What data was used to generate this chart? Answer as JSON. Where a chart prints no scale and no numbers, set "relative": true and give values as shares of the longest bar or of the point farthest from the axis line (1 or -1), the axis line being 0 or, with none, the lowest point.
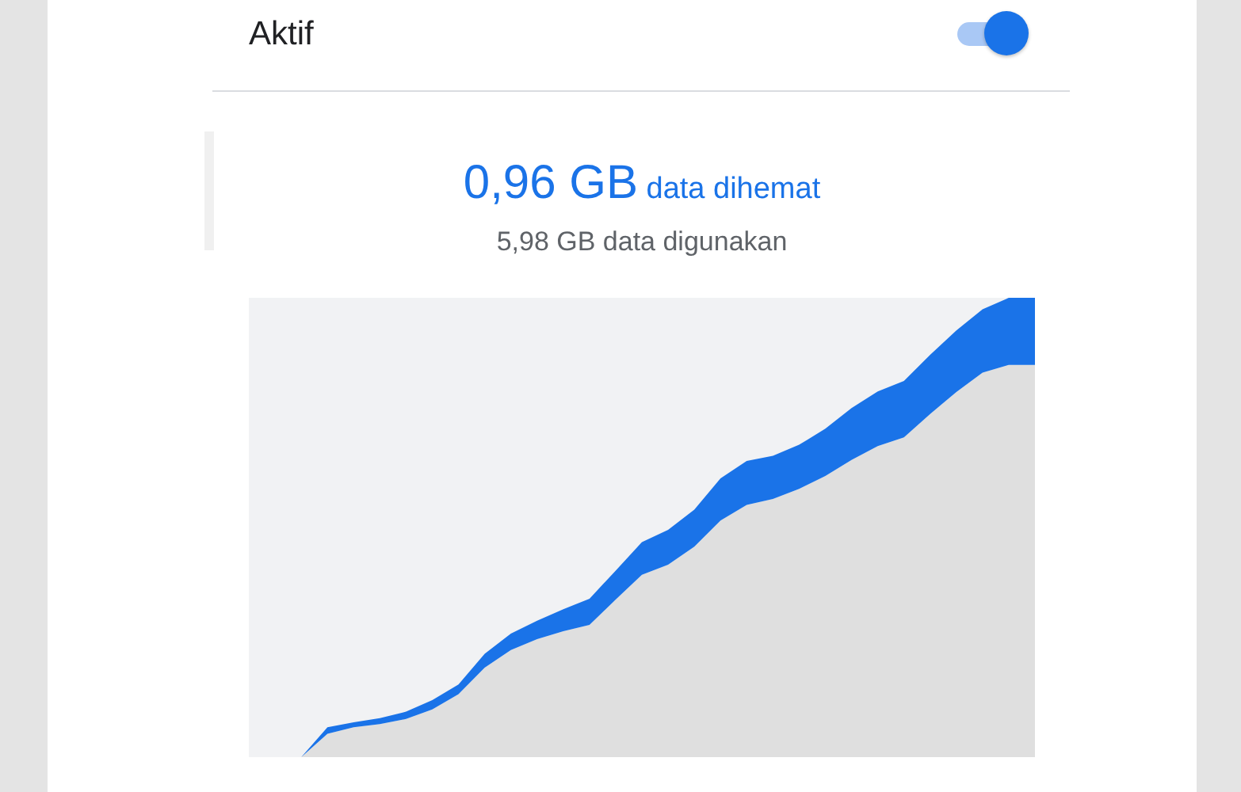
{
  "chart_data": {
    "type": "area",
    "title": "0,96 GB data dihemat",
    "subtitle": "5,98 GB data digunakan",
    "annotations": [
      "Aktif"
    ],
    "categories": [
      null,
      null,
      null,
      null,
      null,
      null,
      null,
      null,
      null,
      null,
      null,
      null,
      null,
      null,
      null,
      null,
      null,
      null,
      null,
      null,
      null,
      null,
      null,
      null,
      null,
      null,
      null,
      null,
      null,
      null,
      null
    ],
    "relative": true,
    "stacked": true,
    "series": [
      {
        "color": "#dfdfdf",
        "values": [
          null,
          null,
          0,
          0.051,
          0.065,
          0.072,
          0.083,
          0.104,
          0.137,
          0.195,
          0.233,
          0.257,
          0.274,
          0.288,
          0.343,
          0.397,
          0.419,
          0.458,
          0.515,
          0.549,
          0.562,
          0.584,
          0.612,
          0.647,
          0.677,
          0.696,
          0.747,
          0.795,
          0.837,
          0.854,
          0.854
        ]
      },
      {
        "color": "#1a73e8",
        "values": [
          null,
          null,
          0,
          0.014,
          0.011,
          0.013,
          0.016,
          0.02,
          0.021,
          0.03,
          0.036,
          0.04,
          0.048,
          0.057,
          0.063,
          0.071,
          0.076,
          0.081,
          0.092,
          0.096,
          0.094,
          0.096,
          0.103,
          0.113,
          0.119,
          0.123,
          0.129,
          0.134,
          0.138,
          0.146,
          0.146
        ]
      }
    ]
  }
}
